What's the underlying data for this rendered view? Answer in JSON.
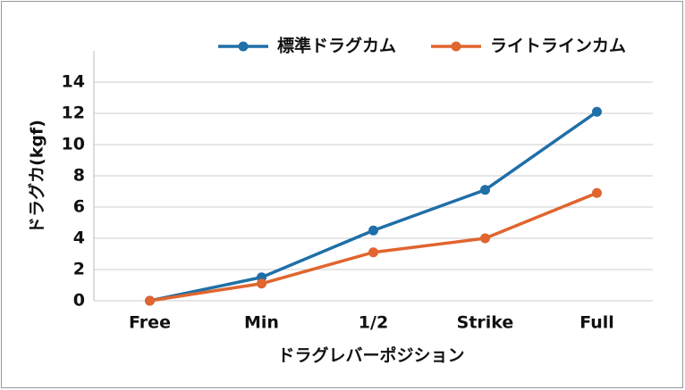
{
  "chart_data": {
    "type": "line",
    "x_label": "ドラグレバーポジション",
    "y_label": "ドラグカ(kgf)",
    "categories": [
      "Free",
      "Min",
      "1/2",
      "Strike",
      "Full"
    ],
    "series": [
      {
        "name": "標準ドラグカム",
        "color": "#1f6fa8",
        "values": [
          0,
          1.5,
          4.5,
          7.1,
          12.1
        ]
      },
      {
        "name": "ライトラインカム",
        "color": "#e0652f",
        "values": [
          0,
          1.1,
          3.1,
          4.0,
          6.9
        ]
      }
    ],
    "ylim": [
      0,
      16
    ],
    "yticks": [
      0,
      2,
      4,
      6,
      8,
      10,
      12,
      14
    ],
    "grid": true
  }
}
